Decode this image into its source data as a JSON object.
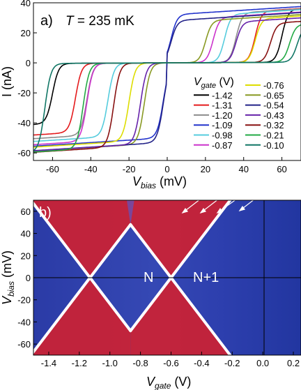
{
  "chart_data": [
    {
      "type": "line",
      "panel_label": "a)",
      "title_var": "T",
      "title_rest": " = 235 mK",
      "xlabel_var": "V",
      "xlabel_sub": "bias",
      "xlabel_unit": " (mV)",
      "ylabel": "I (nA)",
      "xlim": [
        -70,
        70
      ],
      "ylim": [
        -65,
        40
      ],
      "xticks": [
        -60,
        -40,
        -20,
        0,
        20,
        40,
        60
      ],
      "yticks": [
        -60,
        -40,
        -20,
        0,
        20,
        40
      ],
      "legend_title_var": "V",
      "legend_title_sub": "gate",
      "legend_title_unit": " (V)",
      "legend_placement": "lower-right",
      "series": [
        {
          "name": "-1.42",
          "color": "#000000",
          "sat_pos": 35,
          "sat_neg": -40,
          "onset_pos": 60,
          "onset_neg": -60
        },
        {
          "name": "-1.31",
          "color": "#e41a1c",
          "sat_pos": 34,
          "sat_neg": -46,
          "onset_pos": 46,
          "onset_neg": -48
        },
        {
          "name": "-1.20",
          "color": "#8c8c8c",
          "sat_pos": 33,
          "sat_neg": -48,
          "onset_pos": 36,
          "onset_neg": -42
        },
        {
          "name": "-1.09",
          "color": "#2233cc",
          "sat_pos": 32,
          "sat_neg": -50,
          "onset_pos": 2,
          "onset_neg": -2
        },
        {
          "name": "-0.98",
          "color": "#55ccdd",
          "sat_pos": 32,
          "sat_neg": -49,
          "onset_pos": 30,
          "onset_neg": -31
        },
        {
          "name": "-0.87",
          "color": "#cc33cc",
          "sat_pos": 30,
          "sat_neg": -52,
          "onset_pos": 24,
          "onset_neg": -42
        },
        {
          "name": "-0.76",
          "color": "#dddd00",
          "sat_pos": 29,
          "sat_neg": -52,
          "onset_pos": 46,
          "onset_neg": -20
        },
        {
          "name": "-0.65",
          "color": "#889922",
          "sat_pos": 28,
          "sat_neg": -54,
          "onset_pos": 20,
          "onset_neg": -12
        },
        {
          "name": "-0.54",
          "color": "#222288",
          "sat_pos": 28,
          "sat_neg": -53,
          "onset_pos": 2,
          "onset_neg": -2
        },
        {
          "name": "-0.43",
          "color": "#6622aa",
          "sat_pos": 27,
          "sat_neg": -54,
          "onset_pos": 36,
          "onset_neg": -14
        },
        {
          "name": "-0.32",
          "color": "#881111",
          "sat_pos": 26,
          "sat_neg": -56,
          "onset_pos": 54,
          "onset_neg": -28
        },
        {
          "name": "-0.21",
          "color": "#22aa44",
          "sat_pos": 25,
          "sat_neg": -57,
          "onset_pos": 64,
          "onset_neg": -44
        },
        {
          "name": "-0.10",
          "color": "#117766",
          "sat_pos": 24,
          "sat_neg": -59,
          "onset_pos": 68,
          "onset_neg": -64
        }
      ]
    },
    {
      "type": "heatmap",
      "panel_label": "b)",
      "xlabel_var": "V",
      "xlabel_sub": "gate",
      "xlabel_unit": " (V)",
      "ylabel_var": "V",
      "ylabel_sub": "bias",
      "ylabel_unit": " (mV)",
      "xlim": [
        -1.5,
        0.25
      ],
      "ylim": [
        -70,
        70
      ],
      "xticks": [
        -1.4,
        -1.2,
        -1.0,
        -0.8,
        -0.6,
        -0.4,
        -0.2,
        0.0,
        0.2
      ],
      "yticks": [
        -60,
        -40,
        -20,
        0,
        20,
        40,
        60
      ],
      "diamond_centers": [
        -1.13,
        -0.6
      ],
      "diamond_top": 48,
      "annotations": [
        {
          "text": "N",
          "x": -0.87,
          "y": 0
        },
        {
          "text": "N+1",
          "x": -0.37,
          "y": 0
        }
      ],
      "colors": {
        "background": "#2a3aa8",
        "mid": "#6a4fb0",
        "conducting": "#d02030",
        "peak": "#ffffff"
      }
    }
  ]
}
